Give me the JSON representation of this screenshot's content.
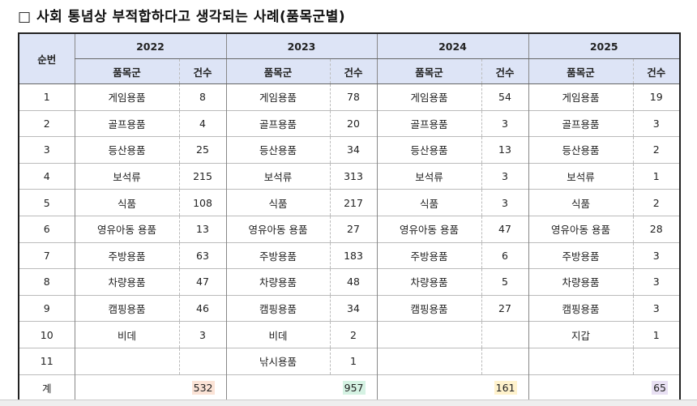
{
  "title": "□ 사회 통념상 부적합하다고 생각되는 사례(품목군별)",
  "headers": {
    "no": "순번",
    "years": [
      "2022",
      "2023",
      "2024",
      "2025"
    ],
    "item": "품목군",
    "count": "건수"
  },
  "rows": [
    {
      "no": "1",
      "cells": [
        [
          "게임용품",
          "8"
        ],
        [
          "게임용품",
          "78"
        ],
        [
          "게임용품",
          "54"
        ],
        [
          "게임용품",
          "19"
        ]
      ]
    },
    {
      "no": "2",
      "cells": [
        [
          "골프용품",
          "4"
        ],
        [
          "골프용품",
          "20"
        ],
        [
          "골프용품",
          "3"
        ],
        [
          "골프용품",
          "3"
        ]
      ]
    },
    {
      "no": "3",
      "cells": [
        [
          "등산용품",
          "25"
        ],
        [
          "등산용품",
          "34"
        ],
        [
          "등산용품",
          "13"
        ],
        [
          "등산용품",
          "2"
        ]
      ]
    },
    {
      "no": "4",
      "cells": [
        [
          "보석류",
          "215"
        ],
        [
          "보석류",
          "313"
        ],
        [
          "보석류",
          "3"
        ],
        [
          "보석류",
          "1"
        ]
      ]
    },
    {
      "no": "5",
      "cells": [
        [
          "식품",
          "108"
        ],
        [
          "식품",
          "217"
        ],
        [
          "식품",
          "3"
        ],
        [
          "식품",
          "2"
        ]
      ]
    },
    {
      "no": "6",
      "cells": [
        [
          "영유아동 용품",
          "13"
        ],
        [
          "영유아동 용품",
          "27"
        ],
        [
          "영유아동 용품",
          "47"
        ],
        [
          "영유아동 용품",
          "28"
        ]
      ]
    },
    {
      "no": "7",
      "cells": [
        [
          "주방용품",
          "63"
        ],
        [
          "주방용품",
          "183"
        ],
        [
          "주방용품",
          "6"
        ],
        [
          "주방용품",
          "3"
        ]
      ]
    },
    {
      "no": "8",
      "cells": [
        [
          "차량용품",
          "47"
        ],
        [
          "차량용품",
          "48"
        ],
        [
          "차량용품",
          "5"
        ],
        [
          "차량용품",
          "3"
        ]
      ]
    },
    {
      "no": "9",
      "cells": [
        [
          "캠핑용품",
          "46"
        ],
        [
          "캠핑용품",
          "34"
        ],
        [
          "캠핑용품",
          "27"
        ],
        [
          "캠핑용품",
          "3"
        ]
      ]
    },
    {
      "no": "10",
      "cells": [
        [
          "비데",
          "3"
        ],
        [
          "비데",
          "2"
        ],
        [
          "",
          ""
        ],
        [
          "지갑",
          "1"
        ]
      ]
    },
    {
      "no": "11",
      "cells": [
        [
          "",
          ""
        ],
        [
          "낚시용품",
          "1"
        ],
        [
          "",
          ""
        ],
        [
          "",
          ""
        ]
      ]
    }
  ],
  "total": {
    "label": "계",
    "values": [
      "532",
      "957",
      "161",
      "65"
    ],
    "highlight_colors": [
      "#fbe3d6",
      "#d5f2e3",
      "#fff2cc",
      "#e8e0f3"
    ]
  }
}
